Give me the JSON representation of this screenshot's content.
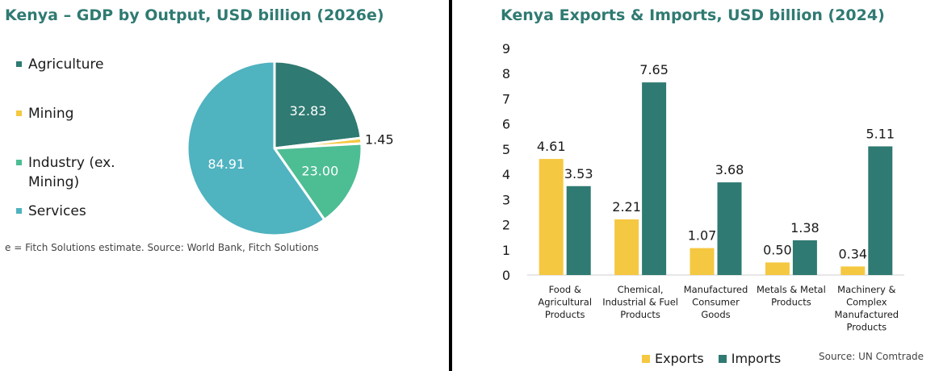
{
  "colors": {
    "title": "#2f7a72",
    "agriculture": "#2f7a72",
    "mining": "#f5c842",
    "industry": "#4dbd94",
    "services": "#4fb3c0",
    "exports": "#f5c842",
    "imports": "#2f7a72"
  },
  "chart_data": [
    {
      "type": "pie",
      "title": "Kenya – GDP by Output, USD billion (2026e)",
      "categories": [
        "Agriculture",
        "Mining",
        "Industry (ex. Mining)",
        "Services"
      ],
      "values": [
        32.83,
        1.45,
        23.0,
        84.91
      ],
      "data_labels": [
        "32.83",
        "1.45",
        "23.00",
        "84.91"
      ],
      "legend_position": "left",
      "note": "e = Fitch Solutions estimate. Source: World Bank, Fitch Solutions"
    },
    {
      "type": "bar",
      "title": "Kenya Exports & Imports, USD billion (2024)",
      "categories": [
        "Food & Agricultural Products",
        "Chemical, Industrial & Fuel Products",
        "Manufactured Consumer Goods",
        "Metals & Metal Products",
        "Machinery & Complex Manufactured Products"
      ],
      "category_lines": [
        [
          "Food &",
          "Agricultural",
          "Products"
        ],
        [
          "Chemical,",
          "Industrial & Fuel",
          "Products"
        ],
        [
          "Manufactured",
          "Consumer",
          "Goods"
        ],
        [
          "Metals & Metal",
          "Products"
        ],
        [
          "Machinery &",
          "Complex",
          "Manufactured",
          "Products"
        ]
      ],
      "series": [
        {
          "name": "Exports",
          "values": [
            4.61,
            2.21,
            1.07,
            0.5,
            0.34
          ],
          "labels": [
            "4.61",
            "2.21",
            "1.07",
            "0.50",
            "0.34"
          ]
        },
        {
          "name": "Imports",
          "values": [
            3.53,
            7.65,
            3.68,
            1.38,
            5.11
          ],
          "labels": [
            "3.53",
            "7.65",
            "3.68",
            "1.38",
            "5.11"
          ]
        }
      ],
      "yticks": [
        "0",
        "1",
        "2",
        "3",
        "4",
        "5",
        "6",
        "7",
        "8",
        "9"
      ],
      "ylim": [
        0,
        9
      ],
      "grid": false,
      "legend_position": "bottom",
      "source": "Source: UN Comtrade"
    }
  ]
}
